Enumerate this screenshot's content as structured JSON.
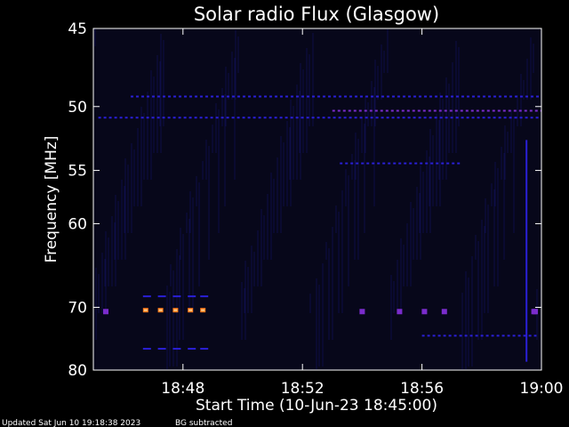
{
  "chart_data": {
    "type": "heatmap",
    "title": "Solar radio Flux (Glasgow)",
    "xlabel": "Start Time (10-Jun-23 18:45:00)",
    "ylabel": "Frequency [MHz]",
    "x_ticks": [
      "18:48",
      "18:52",
      "18:56",
      "19:00"
    ],
    "y_ticks": [
      "45",
      "50",
      "55",
      "60",
      "70",
      "80"
    ],
    "xlim": [
      "18:45:00",
      "19:00:00"
    ],
    "ylim": [
      45,
      80
    ],
    "colors": {
      "background": "#07071a",
      "weak": "#2a1fd6",
      "medium": "#7a2ccc",
      "strong": "#ff7a1a"
    },
    "features": [
      {
        "kind": "band",
        "freq_mhz": 50.8,
        "t_start": "18:45:10",
        "t_end": "19:00:00",
        "level": "weak"
      },
      {
        "kind": "band",
        "freq_mhz": 49.3,
        "t_start": "18:46:15",
        "t_end": "19:00:00",
        "level": "weak"
      },
      {
        "kind": "band",
        "freq_mhz": 50.3,
        "t_start": "18:53:00",
        "t_end": "19:00:00",
        "level": "medium"
      },
      {
        "kind": "band",
        "freq_mhz": 54.4,
        "t_start": "18:53:15",
        "t_end": "18:57:20",
        "level": "weak"
      },
      {
        "kind": "band",
        "freq_mhz": 74.2,
        "t_start": "18:56:00",
        "t_end": "18:59:50",
        "level": "weak"
      },
      {
        "kind": "dashes",
        "freq_mhz": 70.4,
        "times": [
          "18:46:45",
          "18:47:15",
          "18:47:45",
          "18:48:15",
          "18:48:40"
        ],
        "level": "strong"
      },
      {
        "kind": "dashes",
        "freq_mhz": 70.6,
        "times": [
          "18:45:25",
          "18:54:00",
          "18:55:15",
          "18:56:05",
          "18:56:45",
          "18:59:45",
          "19:00:00"
        ],
        "level": "medium"
      },
      {
        "kind": "dashes",
        "freq_mhz": 68.5,
        "times": [
          "18:46:45",
          "18:47:15",
          "18:47:45",
          "18:48:15",
          "18:48:40"
        ],
        "level": "weak"
      },
      {
        "kind": "dashes",
        "freq_mhz": 76.3,
        "times": [
          "18:46:45",
          "18:47:15",
          "18:47:45",
          "18:48:15",
          "18:48:40"
        ],
        "level": "weak"
      },
      {
        "kind": "spike",
        "t": "18:59:30",
        "f_start": 52.5,
        "f_end": 78.5,
        "level": "weak"
      }
    ]
  },
  "footer": {
    "updated": "Updated Sat Jun 10 19:18:38 2023",
    "note": "BG subtracted"
  }
}
